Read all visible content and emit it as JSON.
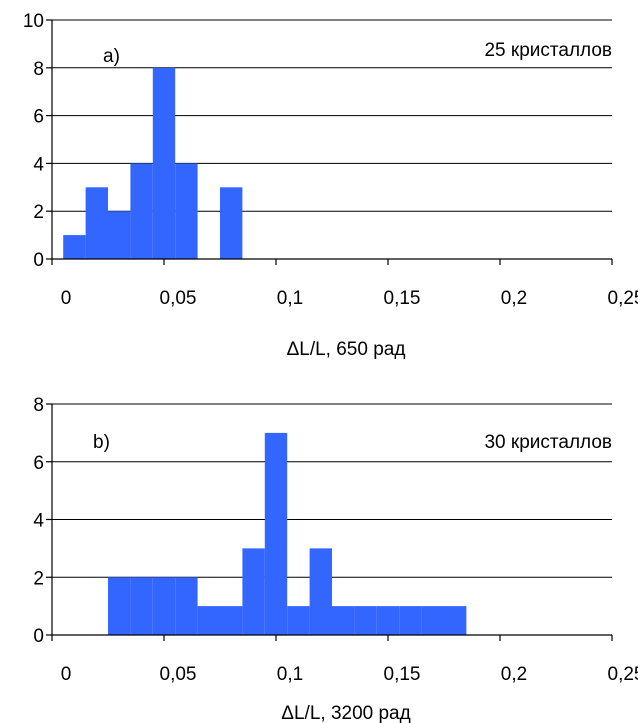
{
  "chart_data": [
    {
      "type": "bar",
      "annotation": "a)",
      "count_label": "25 кристаллов",
      "xlabel": "ΔL/L, 650 рад",
      "ylabel": "",
      "xlim": [
        0,
        0.25
      ],
      "ylim": [
        0,
        10
      ],
      "xticks": [
        0,
        0.05,
        0.1,
        0.15,
        0.2,
        0.25
      ],
      "xtick_labels": [
        "0",
        "0,05",
        "0,1",
        "0,15",
        "0,2",
        "0,25"
      ],
      "yticks": [
        0,
        2,
        4,
        6,
        8,
        10
      ],
      "ytick_labels": [
        "0",
        "2",
        "4",
        "6",
        "8",
        "10"
      ],
      "grid": "horizontal",
      "bar_color": "#3366ff",
      "bins": [
        {
          "x0": 0.005,
          "x1": 0.015,
          "value": 1
        },
        {
          "x0": 0.015,
          "x1": 0.025,
          "value": 3
        },
        {
          "x0": 0.025,
          "x1": 0.035,
          "value": 2
        },
        {
          "x0": 0.035,
          "x1": 0.045,
          "value": 4
        },
        {
          "x0": 0.045,
          "x1": 0.055,
          "value": 8
        },
        {
          "x0": 0.055,
          "x1": 0.065,
          "value": 4
        },
        {
          "x0": 0.075,
          "x1": 0.085,
          "value": 3
        }
      ]
    },
    {
      "type": "bar",
      "annotation": "b)",
      "count_label": "30 кристаллов",
      "xlabel": "ΔL/L, 3200 рад",
      "ylabel": "",
      "xlim": [
        0,
        0.25
      ],
      "ylim": [
        0,
        8
      ],
      "xticks": [
        0,
        0.05,
        0.1,
        0.15,
        0.2,
        0.25
      ],
      "xtick_labels": [
        "0",
        "0,05",
        "0,1",
        "0,15",
        "0,2",
        "0,25"
      ],
      "yticks": [
        0,
        2,
        4,
        6,
        8
      ],
      "ytick_labels": [
        "0",
        "2",
        "4",
        "6",
        "8"
      ],
      "grid": "horizontal",
      "bar_color": "#3366ff",
      "bins": [
        {
          "x0": 0.025,
          "x1": 0.035,
          "value": 2
        },
        {
          "x0": 0.035,
          "x1": 0.045,
          "value": 2
        },
        {
          "x0": 0.045,
          "x1": 0.055,
          "value": 2
        },
        {
          "x0": 0.055,
          "x1": 0.065,
          "value": 2
        },
        {
          "x0": 0.065,
          "x1": 0.075,
          "value": 1
        },
        {
          "x0": 0.075,
          "x1": 0.085,
          "value": 1
        },
        {
          "x0": 0.085,
          "x1": 0.095,
          "value": 3
        },
        {
          "x0": 0.095,
          "x1": 0.105,
          "value": 7
        },
        {
          "x0": 0.105,
          "x1": 0.115,
          "value": 1
        },
        {
          "x0": 0.115,
          "x1": 0.125,
          "value": 3
        },
        {
          "x0": 0.125,
          "x1": 0.135,
          "value": 1
        },
        {
          "x0": 0.135,
          "x1": 0.145,
          "value": 1
        },
        {
          "x0": 0.145,
          "x1": 0.155,
          "value": 1
        },
        {
          "x0": 0.155,
          "x1": 0.165,
          "value": 1
        },
        {
          "x0": 0.165,
          "x1": 0.175,
          "value": 1
        },
        {
          "x0": 0.175,
          "x1": 0.185,
          "value": 1
        }
      ]
    }
  ]
}
